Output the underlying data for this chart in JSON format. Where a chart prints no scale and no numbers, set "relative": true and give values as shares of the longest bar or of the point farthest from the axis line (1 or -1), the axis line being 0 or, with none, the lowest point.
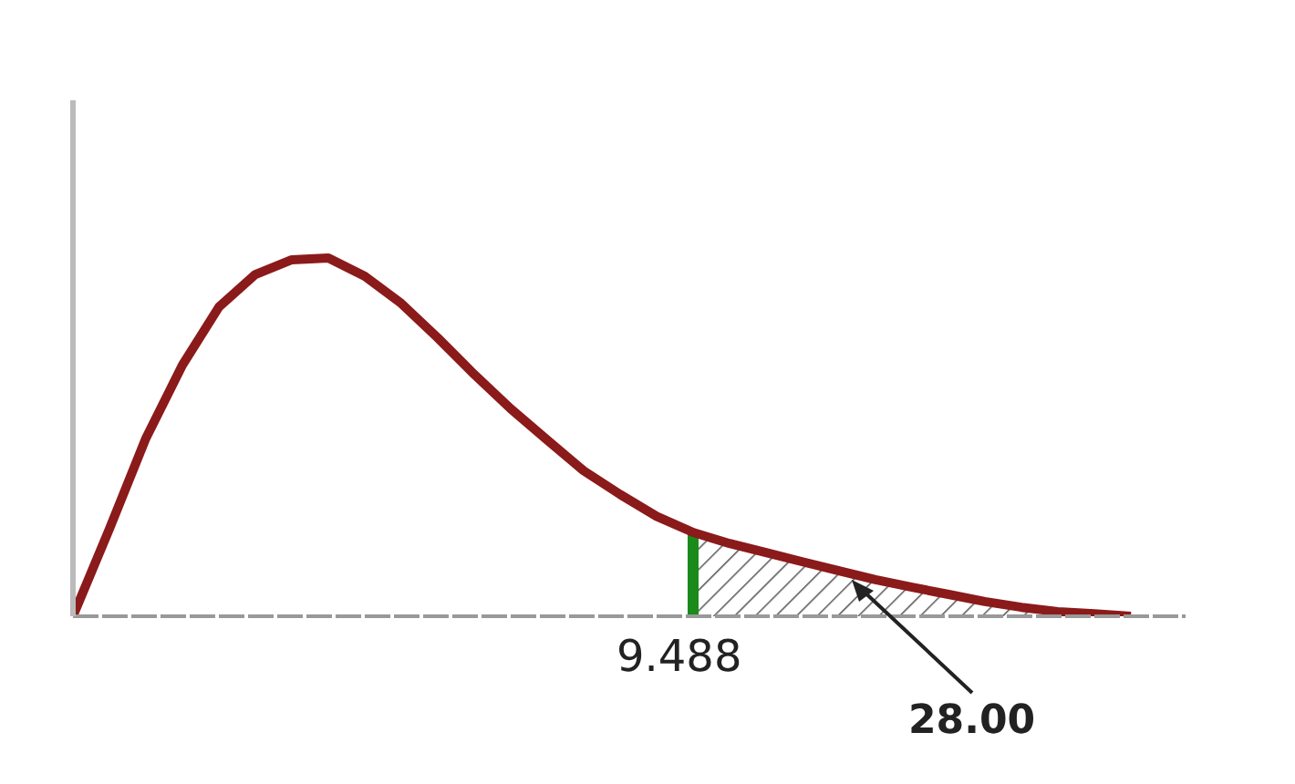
{
  "chart_data": {
    "type": "line",
    "relative": true,
    "grid": false,
    "marker": "none",
    "line_style": "solid",
    "categories": [
      null,
      null,
      null,
      null,
      null,
      null,
      null,
      null,
      null,
      null,
      null,
      null,
      null,
      null,
      null,
      null,
      null,
      null,
      null,
      null,
      null,
      null,
      null,
      null,
      null,
      null,
      null,
      null,
      null,
      null
    ],
    "series": [
      {
        "color": "#8b1a1a",
        "values": [
          0,
          0.244,
          0.497,
          0.701,
          0.863,
          0.954,
          0.995,
          1,
          0.949,
          0.873,
          0.777,
          0.675,
          0.579,
          0.492,
          0.406,
          0.34,
          0.279,
          0.234,
          0.203,
          0.178,
          0.152,
          0.127,
          0.102,
          0.081,
          0.061,
          0.041,
          0.025,
          0.013,
          0.007,
          0
        ]
      }
    ],
    "annotations": [
      "9.488",
      "28.00"
    ]
  }
}
